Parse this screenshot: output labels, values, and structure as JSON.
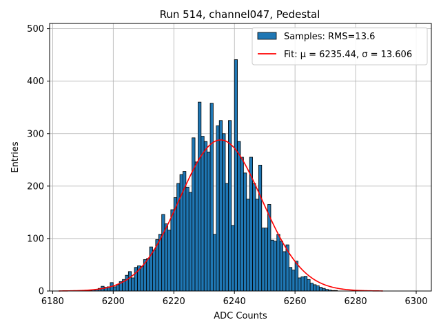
{
  "chart_data": {
    "type": "bar",
    "title": "Run 514, channel047, Pedestal",
    "xlabel": "ADC Counts",
    "ylabel": "Entries",
    "xlim": [
      6179,
      6305
    ],
    "ylim": [
      0,
      510
    ],
    "xticks": [
      6180,
      6200,
      6220,
      6240,
      6260,
      6280,
      6300
    ],
    "yticks": [
      0,
      100,
      200,
      300,
      400,
      500
    ],
    "grid": true,
    "legend_position": "top-right",
    "bin_width": 1,
    "colors": {
      "bar_fill": "#1f77b4",
      "bar_edge": "#000000",
      "fit_line": "#ff0000",
      "grid": "#b0b0b0"
    },
    "histogram": {
      "name": "Samples: RMS=13.6",
      "bins_start": [
        6182,
        6183,
        6184,
        6185,
        6186,
        6187,
        6188,
        6189,
        6190,
        6191,
        6192,
        6193,
        6194,
        6195,
        6196,
        6197,
        6198,
        6199,
        6200,
        6201,
        6202,
        6203,
        6204,
        6205,
        6206,
        6207,
        6208,
        6209,
        6210,
        6211,
        6212,
        6213,
        6214,
        6215,
        6216,
        6217,
        6218,
        6219,
        6220,
        6221,
        6222,
        6223,
        6224,
        6225,
        6226,
        6227,
        6228,
        6229,
        6230,
        6231,
        6232,
        6233,
        6234,
        6235,
        6236,
        6237,
        6238,
        6239,
        6240,
        6241,
        6242,
        6243,
        6244,
        6245,
        6246,
        6247,
        6248,
        6249,
        6250,
        6251,
        6252,
        6253,
        6254,
        6255,
        6256,
        6257,
        6258,
        6259,
        6260,
        6261,
        6262,
        6263,
        6264,
        6265,
        6266,
        6267,
        6268,
        6269,
        6270,
        6271,
        6272,
        6273,
        6274,
        6275,
        6276,
        6277,
        6278,
        6279,
        6280,
        6281,
        6282,
        6283,
        6284,
        6285,
        6286,
        6287,
        6288
      ],
      "counts": [
        0,
        0,
        0,
        0,
        0,
        0,
        0,
        0,
        0,
        0,
        1,
        2,
        3,
        5,
        9,
        7,
        8,
        16,
        8,
        12,
        18,
        22,
        30,
        37,
        25,
        45,
        48,
        47,
        60,
        62,
        84,
        78,
        98,
        108,
        146,
        128,
        116,
        155,
        178,
        205,
        222,
        228,
        198,
        188,
        292,
        246,
        360,
        295,
        285,
        265,
        358,
        108,
        315,
        325,
        300,
        205,
        325,
        125,
        441,
        285,
        255,
        225,
        175,
        255,
        205,
        175,
        240,
        120,
        120,
        165,
        97,
        95,
        108,
        95,
        75,
        88,
        45,
        40,
        57,
        25,
        27,
        28,
        22,
        15,
        12,
        10,
        7,
        5,
        3,
        2,
        1,
        1,
        0,
        0,
        0,
        0,
        0,
        0,
        0,
        0,
        0,
        0,
        0,
        0,
        0,
        0,
        0
      ]
    },
    "fit": {
      "name": "Fit: μ = 6235.44, σ = 13.606",
      "mu": 6235.44,
      "sigma": 13.606,
      "amplitude": 288,
      "x_range": [
        6182,
        6289
      ]
    }
  }
}
